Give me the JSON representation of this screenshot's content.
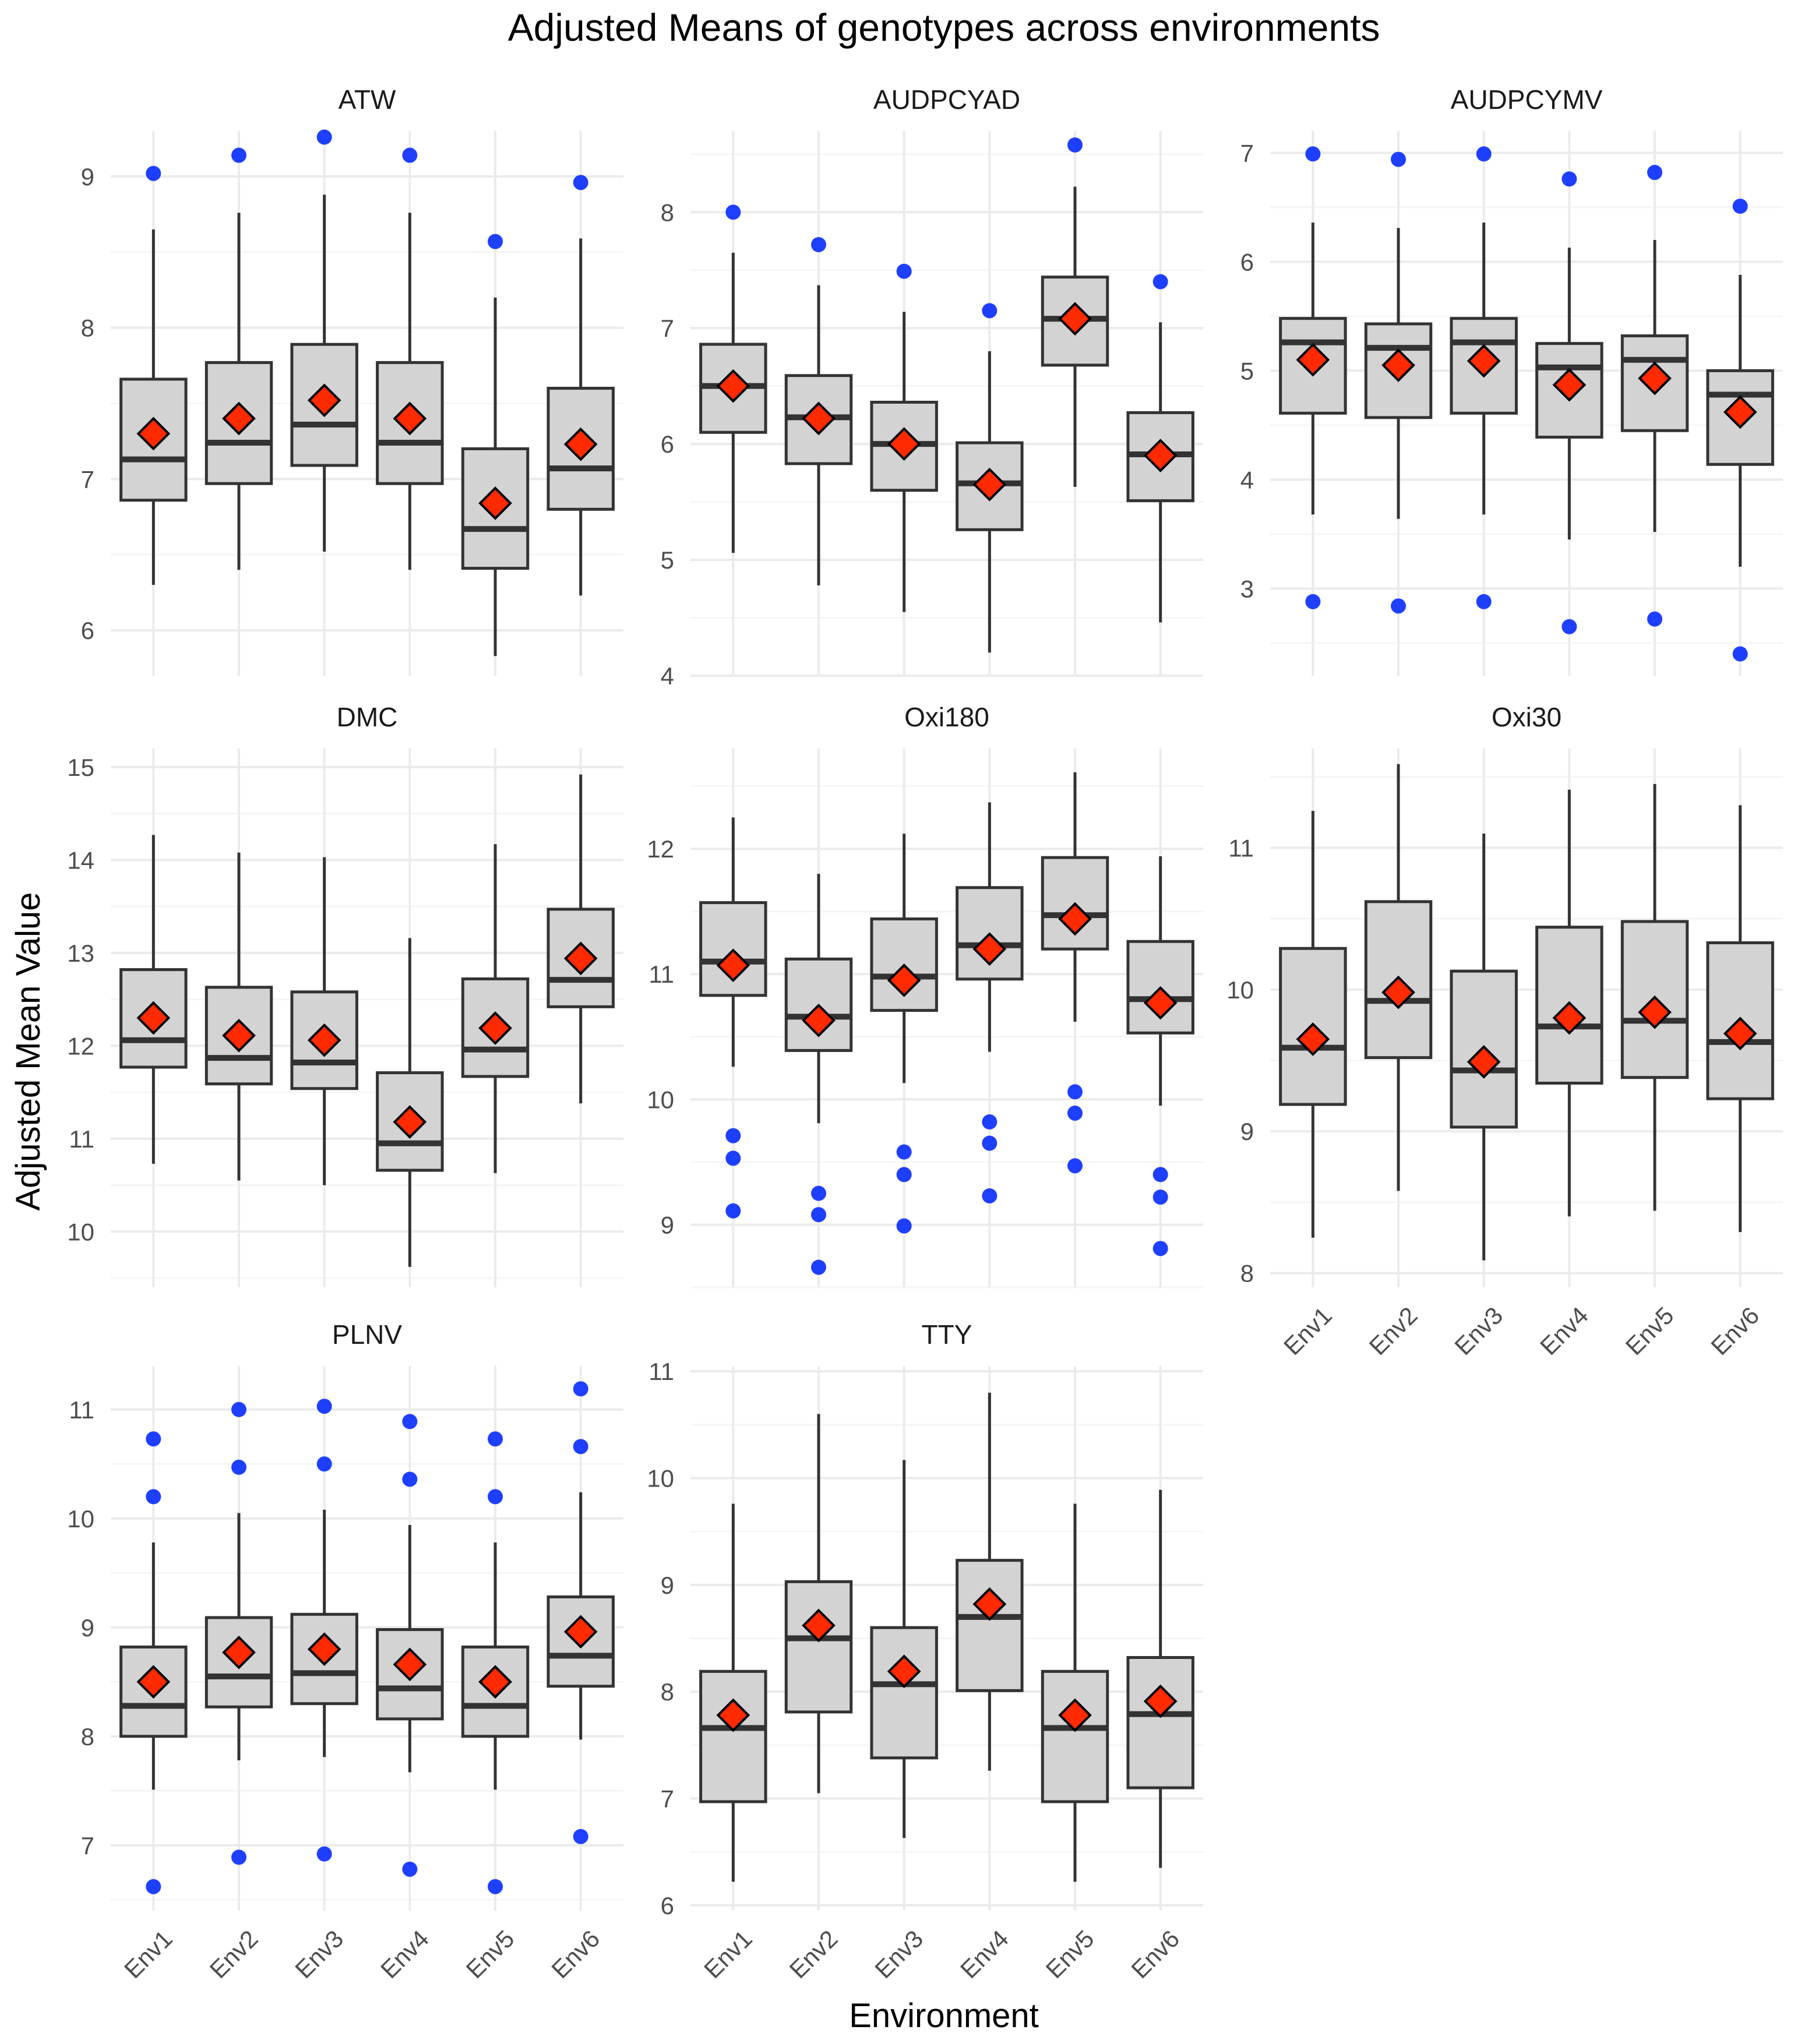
{
  "colors": {
    "background": "#ffffff",
    "grid_major": "#ebebeb",
    "grid_minor": "#f5f5f5",
    "box_fill": "#d3d3d3",
    "box_line": "#333333",
    "outlier": "#1f3fff",
    "mean_fill": "#ff2a00",
    "mean_stroke": "#000000",
    "text": "#4d4d4d"
  },
  "chart_data": {
    "type": "boxplot",
    "title": "Adjusted Means of genotypes across environments",
    "xlabel": "Environment",
    "ylabel": "Adjusted Mean Value",
    "categories": [
      "Env1",
      "Env2",
      "Env3",
      "Env4",
      "Env5",
      "Env6"
    ],
    "panels": [
      {
        "name": "ATW",
        "ylim": [
          5.7,
          9.3
        ],
        "yticks": [
          "6",
          "7",
          "8",
          "9"
        ],
        "boxes": [
          {
            "env": "Env1",
            "low": 6.3,
            "q1": 6.86,
            "median": 7.13,
            "q3": 7.66,
            "high": 8.65,
            "mean": 7.3,
            "outliers": [
              9.02
            ]
          },
          {
            "env": "Env2",
            "low": 6.4,
            "q1": 6.97,
            "median": 7.24,
            "q3": 7.77,
            "high": 8.76,
            "mean": 7.4,
            "outliers": [
              9.14
            ]
          },
          {
            "env": "Env3",
            "low": 6.52,
            "q1": 7.09,
            "median": 7.36,
            "q3": 7.89,
            "high": 8.88,
            "mean": 7.52,
            "outliers": [
              9.26
            ]
          },
          {
            "env": "Env4",
            "low": 6.4,
            "q1": 6.97,
            "median": 7.24,
            "q3": 7.77,
            "high": 8.76,
            "mean": 7.4,
            "outliers": [
              9.14
            ]
          },
          {
            "env": "Env5",
            "low": 5.83,
            "q1": 6.41,
            "median": 6.67,
            "q3": 7.2,
            "high": 8.2,
            "mean": 6.84,
            "outliers": [
              8.57
            ]
          },
          {
            "env": "Env6",
            "low": 6.23,
            "q1": 6.8,
            "median": 7.07,
            "q3": 7.6,
            "high": 8.59,
            "mean": 7.23,
            "outliers": [
              8.96
            ]
          }
        ]
      },
      {
        "name": "AUDPCYAD",
        "ylim": [
          4.0,
          8.7
        ],
        "yticks": [
          "4",
          "5",
          "6",
          "7",
          "8"
        ],
        "boxes": [
          {
            "env": "Env1",
            "low": 5.06,
            "q1": 6.1,
            "median": 6.5,
            "q3": 6.86,
            "high": 7.65,
            "mean": 6.5,
            "outliers": [
              8.0
            ]
          },
          {
            "env": "Env2",
            "low": 4.78,
            "q1": 5.83,
            "median": 6.23,
            "q3": 6.59,
            "high": 7.37,
            "mean": 6.22,
            "outliers": [
              7.72
            ]
          },
          {
            "env": "Env3",
            "low": 4.55,
            "q1": 5.6,
            "median": 6.0,
            "q3": 6.36,
            "high": 7.14,
            "mean": 6.0,
            "outliers": [
              7.49
            ]
          },
          {
            "env": "Env4",
            "low": 4.2,
            "q1": 5.26,
            "median": 5.66,
            "q3": 6.01,
            "high": 6.8,
            "mean": 5.65,
            "outliers": [
              7.15
            ]
          },
          {
            "env": "Env5",
            "low": 5.63,
            "q1": 6.68,
            "median": 7.08,
            "q3": 7.44,
            "high": 8.22,
            "mean": 7.08,
            "outliers": [
              8.58
            ]
          },
          {
            "env": "Env6",
            "low": 4.46,
            "q1": 5.51,
            "median": 5.91,
            "q3": 6.27,
            "high": 7.05,
            "mean": 5.9,
            "outliers": [
              7.4
            ]
          }
        ]
      },
      {
        "name": "AUDPCYMV",
        "ylim": [
          2.2,
          7.2
        ],
        "yticks": [
          "3",
          "4",
          "5",
          "6",
          "7"
        ],
        "boxes": [
          {
            "env": "Env1",
            "low": 3.68,
            "q1": 4.61,
            "median": 5.26,
            "q3": 5.48,
            "high": 6.36,
            "mean": 5.1,
            "outliers": [
              6.99,
              2.88
            ]
          },
          {
            "env": "Env2",
            "low": 3.64,
            "q1": 4.57,
            "median": 5.21,
            "q3": 5.43,
            "high": 6.31,
            "mean": 5.05,
            "outliers": [
              6.94,
              2.84
            ]
          },
          {
            "env": "Env3",
            "low": 3.68,
            "q1": 4.61,
            "median": 5.26,
            "q3": 5.48,
            "high": 6.36,
            "mean": 5.09,
            "outliers": [
              6.99,
              2.88
            ]
          },
          {
            "env": "Env4",
            "low": 3.45,
            "q1": 4.39,
            "median": 5.03,
            "q3": 5.25,
            "high": 6.13,
            "mean": 4.87,
            "outliers": [
              6.76,
              2.65
            ]
          },
          {
            "env": "Env5",
            "low": 3.52,
            "q1": 4.45,
            "median": 5.1,
            "q3": 5.32,
            "high": 6.2,
            "mean": 4.93,
            "outliers": [
              6.82,
              2.72
            ]
          },
          {
            "env": "Env6",
            "low": 3.2,
            "q1": 4.14,
            "median": 4.78,
            "q3": 5.0,
            "high": 5.88,
            "mean": 4.62,
            "outliers": [
              6.51,
              2.4
            ]
          }
        ]
      },
      {
        "name": "DMC",
        "ylim": [
          9.4,
          15.2
        ],
        "yticks": [
          "10",
          "11",
          "12",
          "13",
          "14",
          "15"
        ],
        "boxes": [
          {
            "env": "Env1",
            "low": 10.73,
            "q1": 11.77,
            "median": 12.06,
            "q3": 12.82,
            "high": 14.27,
            "mean": 12.3,
            "outliers": []
          },
          {
            "env": "Env2",
            "low": 10.55,
            "q1": 11.59,
            "median": 11.87,
            "q3": 12.63,
            "high": 14.08,
            "mean": 12.11,
            "outliers": []
          },
          {
            "env": "Env3",
            "low": 10.5,
            "q1": 11.54,
            "median": 11.82,
            "q3": 12.58,
            "high": 14.03,
            "mean": 12.06,
            "outliers": []
          },
          {
            "env": "Env4",
            "low": 9.62,
            "q1": 10.66,
            "median": 10.95,
            "q3": 11.71,
            "high": 13.16,
            "mean": 11.18,
            "outliers": []
          },
          {
            "env": "Env5",
            "low": 10.63,
            "q1": 11.67,
            "median": 11.96,
            "q3": 12.72,
            "high": 14.17,
            "mean": 12.19,
            "outliers": []
          },
          {
            "env": "Env6",
            "low": 11.38,
            "q1": 12.42,
            "median": 12.71,
            "q3": 13.47,
            "high": 14.92,
            "mean": 12.94,
            "outliers": []
          }
        ]
      },
      {
        "name": "Oxi180",
        "ylim": [
          8.5,
          12.8
        ],
        "yticks": [
          "9",
          "10",
          "11",
          "12"
        ],
        "boxes": [
          {
            "env": "Env1",
            "low": 10.26,
            "q1": 10.83,
            "median": 11.1,
            "q3": 11.57,
            "high": 12.25,
            "mean": 11.07,
            "outliers": [
              9.71,
              9.53,
              9.11
            ]
          },
          {
            "env": "Env2",
            "low": 9.81,
            "q1": 10.39,
            "median": 10.66,
            "q3": 11.12,
            "high": 11.8,
            "mean": 10.63,
            "outliers": [
              9.25,
              9.08,
              8.66
            ]
          },
          {
            "env": "Env3",
            "low": 10.13,
            "q1": 10.71,
            "median": 10.98,
            "q3": 11.44,
            "high": 12.12,
            "mean": 10.95,
            "outliers": [
              9.58,
              9.4,
              8.99
            ]
          },
          {
            "env": "Env4",
            "low": 10.38,
            "q1": 10.96,
            "median": 11.23,
            "q3": 11.69,
            "high": 12.37,
            "mean": 11.2,
            "outliers": [
              9.82,
              9.65,
              9.23
            ]
          },
          {
            "env": "Env5",
            "low": 10.62,
            "q1": 11.2,
            "median": 11.47,
            "q3": 11.93,
            "high": 12.61,
            "mean": 11.44,
            "outliers": [
              10.06,
              9.89,
              9.47
            ]
          },
          {
            "env": "Env6",
            "low": 9.95,
            "q1": 10.53,
            "median": 10.8,
            "q3": 11.26,
            "high": 11.94,
            "mean": 10.77,
            "outliers": [
              9.4,
              9.22,
              8.81
            ]
          }
        ]
      },
      {
        "name": "Oxi30",
        "ylim": [
          7.9,
          11.7
        ],
        "yticks": [
          "8",
          "9",
          "10",
          "11"
        ],
        "boxes": [
          {
            "env": "Env1",
            "low": 8.25,
            "q1": 9.19,
            "median": 9.59,
            "q3": 10.29,
            "high": 11.26,
            "mean": 9.65,
            "outliers": []
          },
          {
            "env": "Env2",
            "low": 8.58,
            "q1": 9.52,
            "median": 9.92,
            "q3": 10.62,
            "high": 11.59,
            "mean": 9.98,
            "outliers": []
          },
          {
            "env": "Env3",
            "low": 8.09,
            "q1": 9.03,
            "median": 9.43,
            "q3": 10.13,
            "high": 11.1,
            "mean": 9.49,
            "outliers": []
          },
          {
            "env": "Env4",
            "low": 8.4,
            "q1": 9.34,
            "median": 9.74,
            "q3": 10.44,
            "high": 11.41,
            "mean": 9.8,
            "outliers": []
          },
          {
            "env": "Env5",
            "low": 8.44,
            "q1": 9.38,
            "median": 9.78,
            "q3": 10.48,
            "high": 11.45,
            "mean": 9.84,
            "outliers": []
          },
          {
            "env": "Env6",
            "low": 8.29,
            "q1": 9.23,
            "median": 9.63,
            "q3": 10.33,
            "high": 11.3,
            "mean": 9.69,
            "outliers": []
          }
        ]
      },
      {
        "name": "PLNV",
        "ylim": [
          6.4,
          11.4
        ],
        "yticks": [
          "7",
          "8",
          "9",
          "10",
          "11"
        ],
        "boxes": [
          {
            "env": "Env1",
            "low": 7.51,
            "q1": 8.0,
            "median": 8.28,
            "q3": 8.82,
            "high": 9.78,
            "mean": 8.5,
            "outliers": [
              10.73,
              10.2,
              6.62
            ]
          },
          {
            "env": "Env2",
            "low": 7.78,
            "q1": 8.27,
            "median": 8.55,
            "q3": 9.09,
            "high": 10.05,
            "mean": 8.77,
            "outliers": [
              11.0,
              10.47,
              6.89
            ]
          },
          {
            "env": "Env3",
            "low": 7.81,
            "q1": 8.3,
            "median": 8.58,
            "q3": 9.12,
            "high": 10.08,
            "mean": 8.8,
            "outliers": [
              11.03,
              10.5,
              6.92
            ]
          },
          {
            "env": "Env4",
            "low": 7.67,
            "q1": 8.16,
            "median": 8.44,
            "q3": 8.98,
            "high": 9.94,
            "mean": 8.66,
            "outliers": [
              10.89,
              10.36,
              6.78
            ]
          },
          {
            "env": "Env5",
            "low": 7.51,
            "q1": 8.0,
            "median": 8.28,
            "q3": 8.82,
            "high": 9.78,
            "mean": 8.5,
            "outliers": [
              10.73,
              10.2,
              6.62
            ]
          },
          {
            "env": "Env6",
            "low": 7.97,
            "q1": 8.46,
            "median": 8.74,
            "q3": 9.28,
            "high": 10.24,
            "mean": 8.96,
            "outliers": [
              11.19,
              10.66,
              7.08
            ]
          }
        ]
      },
      {
        "name": "TTY",
        "ylim": [
          5.95,
          11.05
        ],
        "yticks": [
          "6",
          "7",
          "8",
          "9",
          "10",
          "11"
        ],
        "boxes": [
          {
            "env": "Env1",
            "low": 6.22,
            "q1": 6.97,
            "median": 7.66,
            "q3": 8.19,
            "high": 9.76,
            "mean": 7.78,
            "outliers": []
          },
          {
            "env": "Env2",
            "low": 7.05,
            "q1": 7.81,
            "median": 8.5,
            "q3": 9.03,
            "high": 10.6,
            "mean": 8.62,
            "outliers": []
          },
          {
            "env": "Env3",
            "low": 6.63,
            "q1": 7.38,
            "median": 8.07,
            "q3": 8.6,
            "high": 10.17,
            "mean": 8.19,
            "outliers": []
          },
          {
            "env": "Env4",
            "low": 7.26,
            "q1": 8.01,
            "median": 8.7,
            "q3": 9.23,
            "high": 10.8,
            "mean": 8.82,
            "outliers": []
          },
          {
            "env": "Env5",
            "low": 6.22,
            "q1": 6.97,
            "median": 7.66,
            "q3": 8.19,
            "high": 9.76,
            "mean": 7.78,
            "outliers": []
          },
          {
            "env": "Env6",
            "low": 6.35,
            "q1": 7.1,
            "median": 7.79,
            "q3": 8.32,
            "high": 9.89,
            "mean": 7.91,
            "outliers": []
          }
        ]
      }
    ]
  }
}
